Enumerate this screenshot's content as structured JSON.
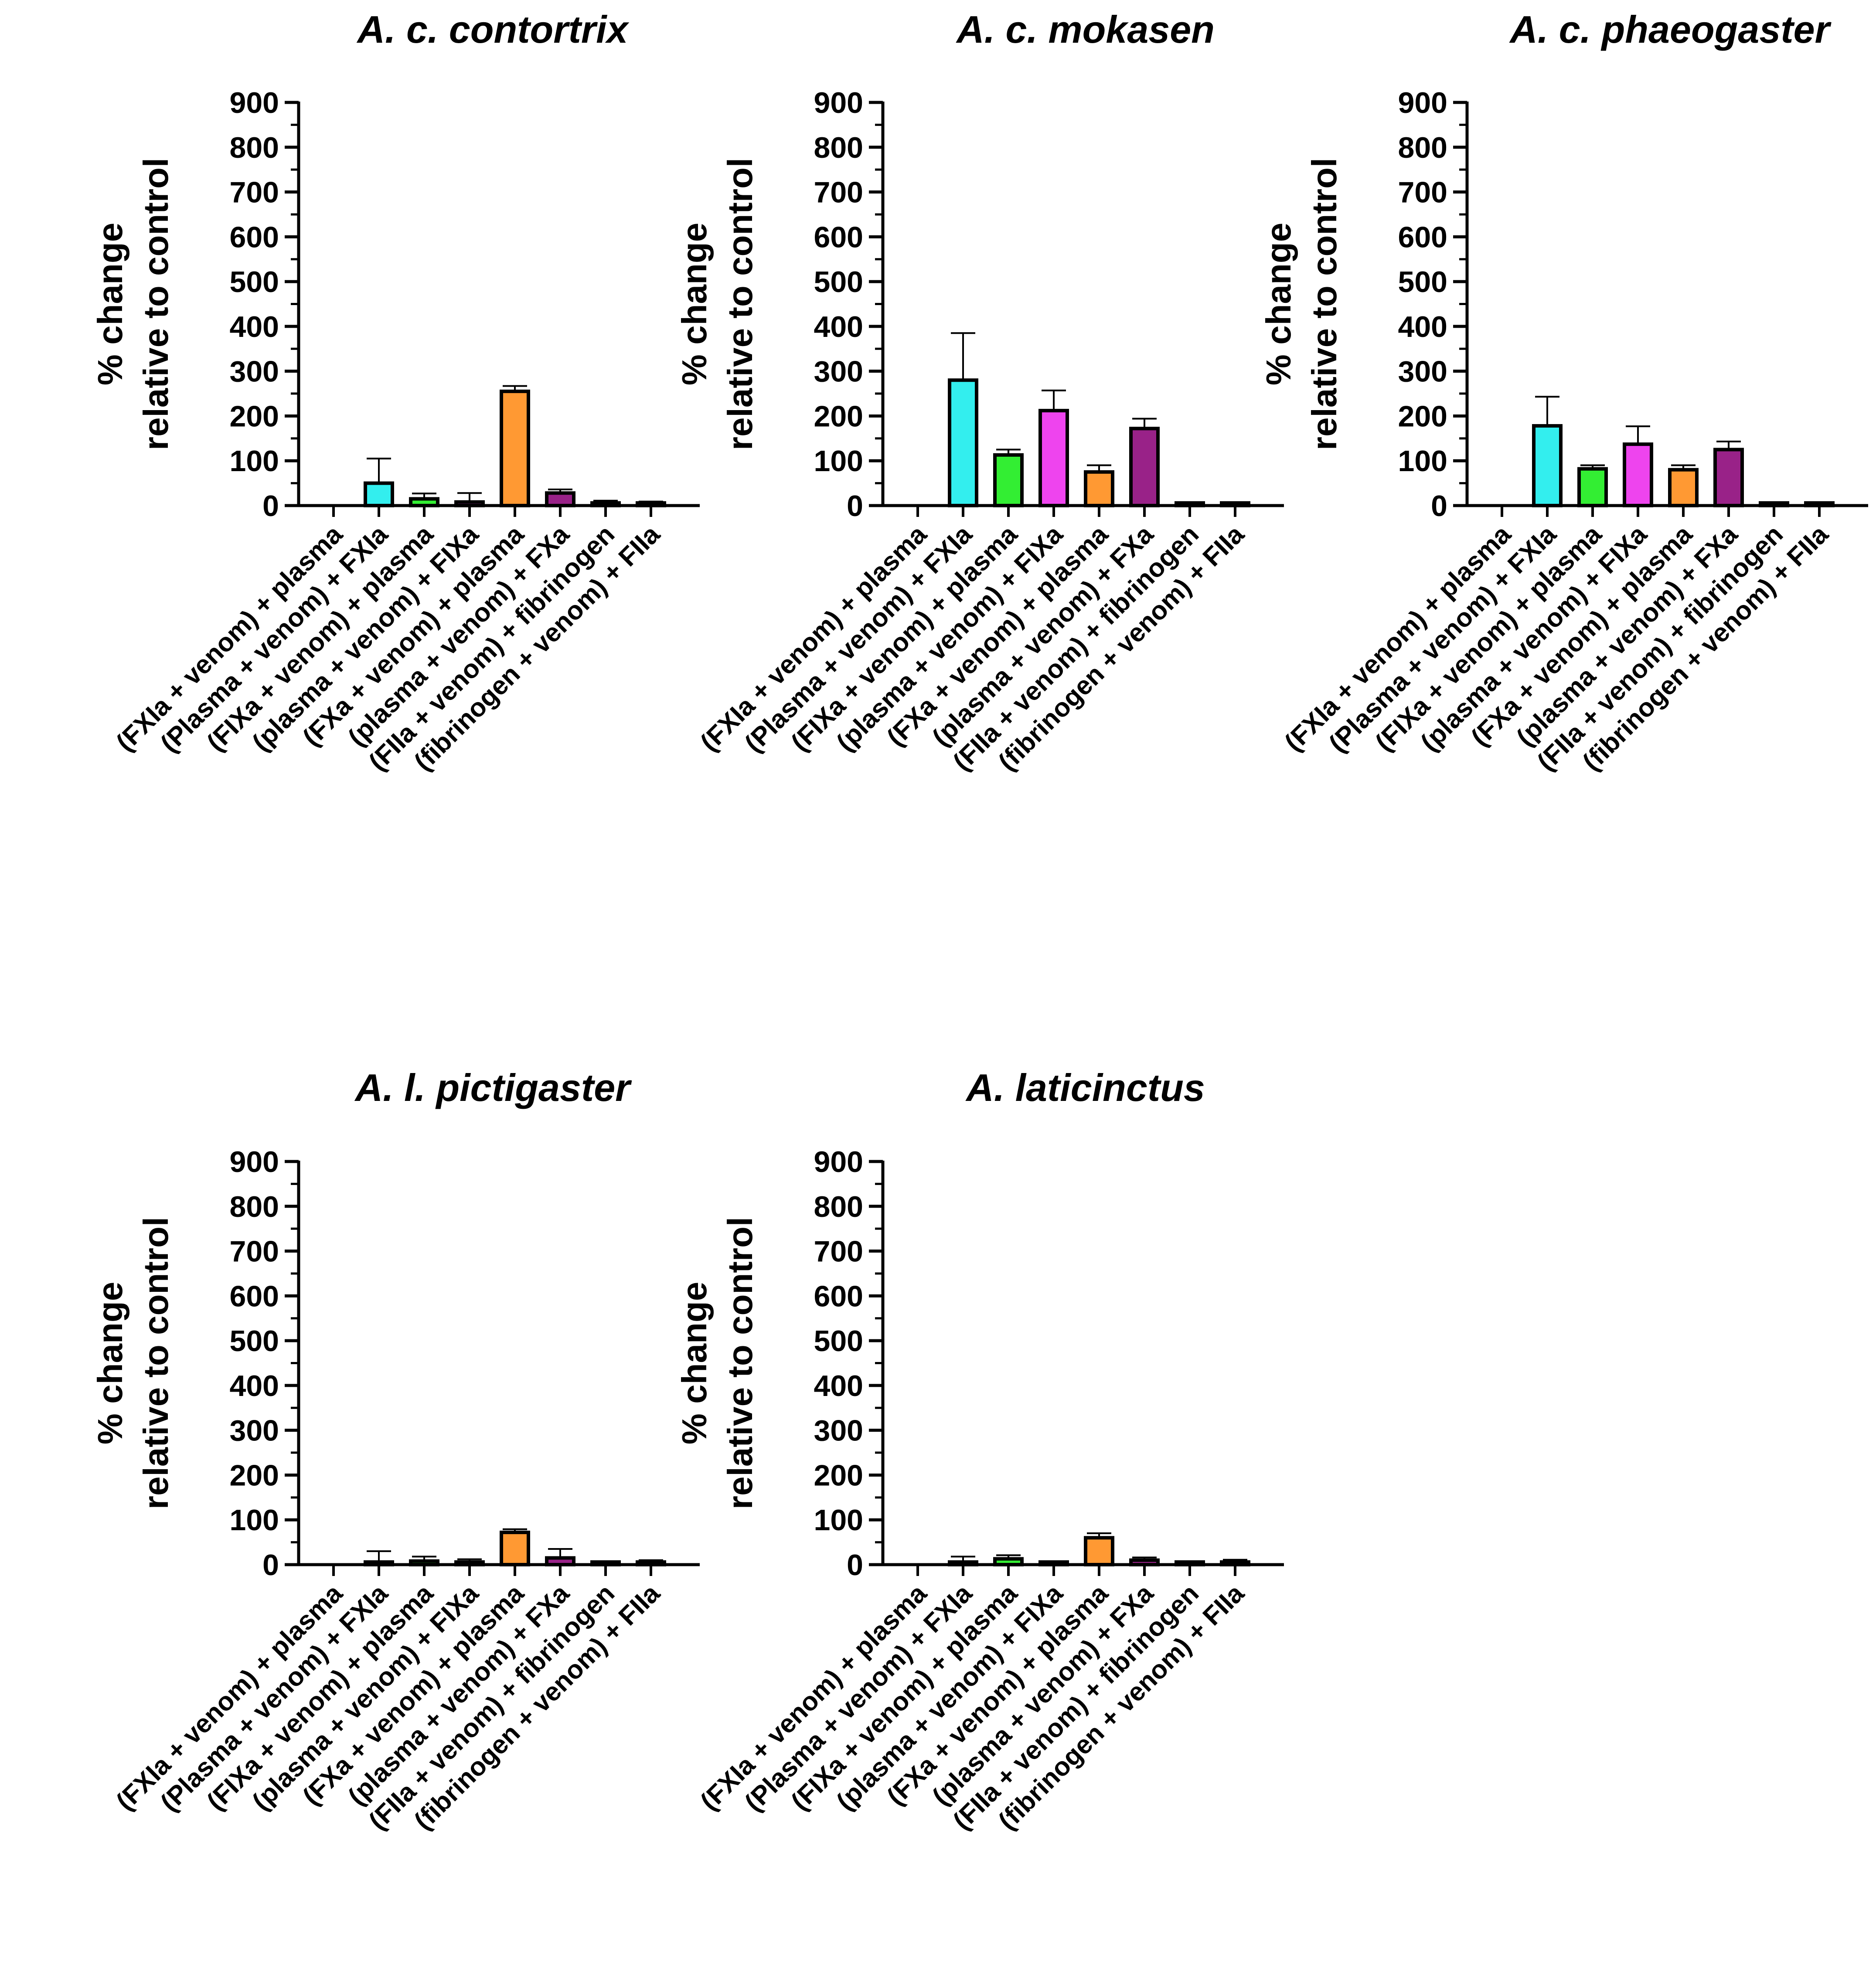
{
  "chart_data": [
    {
      "type": "bar",
      "title": "A. c. contortrix",
      "ylabel": [
        "% change",
        "relative to control"
      ],
      "yticks": [
        0,
        100,
        200,
        300,
        400,
        500,
        600,
        700,
        800,
        900
      ],
      "ylim": [
        0,
        900
      ],
      "categories": [
        "(FXIa + venom) + plasma",
        "(Plasma + venom) + FXIa",
        "(FIXa + venom) + plasma",
        "(plasma + venom) + FIXa",
        "(FXa + venom) + plasma",
        "(plasma + venom) + FXa",
        "(FIIa + venom) + fibrinogen",
        "(fibrinogen + venom) + FIIa"
      ],
      "values": [
        0,
        50,
        15,
        8,
        255,
        28,
        5,
        3
      ],
      "errors": [
        0,
        55,
        12,
        20,
        12,
        8,
        6,
        6
      ],
      "colors": [
        "#ffffff",
        "#33eeee",
        "#33ee33",
        "#ee44ee",
        "#ff9933",
        "#992288",
        "#ffffff",
        "#ffffff"
      ]
    },
    {
      "type": "bar",
      "title": "A. c. mokasen",
      "ylabel": [
        "% change",
        "relative to control"
      ],
      "yticks": [
        0,
        100,
        200,
        300,
        400,
        500,
        600,
        700,
        800,
        900
      ],
      "ylim": [
        0,
        900
      ],
      "categories": [
        "(FXIa + venom) + plasma",
        "(Plasma + venom) + FXIa",
        "(FIXa + venom) + plasma",
        "(plasma + venom) + FIXa",
        "(FXa + venom) + plasma",
        "(plasma + venom) + FXa",
        "(FIIa + venom) + fibrinogen",
        "(fibrinogen + venom) + FIIa"
      ],
      "values": [
        0,
        280,
        113,
        212,
        75,
        172,
        3,
        1
      ],
      "errors": [
        0,
        105,
        12,
        45,
        15,
        22,
        3,
        2
      ],
      "colors": [
        "#ffffff",
        "#33eeee",
        "#33ee33",
        "#ee44ee",
        "#ff9933",
        "#992288",
        "#ffffff",
        "#ffffff"
      ]
    },
    {
      "type": "bar",
      "title": "A. c. phaeogaster",
      "ylabel": [
        "% change",
        "relative to control"
      ],
      "yticks": [
        0,
        100,
        200,
        300,
        400,
        500,
        600,
        700,
        800,
        900
      ],
      "ylim": [
        0,
        900
      ],
      "categories": [
        "(FXIa + venom) + plasma",
        "(Plasma + venom) + FXIa",
        "(FIXa + venom) + plasma",
        "(plasma + venom) + FIXa",
        "(FXa + venom) + plasma",
        "(plasma + venom) + FXa",
        "(FIIa + venom) + fibrinogen",
        "(fibrinogen + venom) + FIIa"
      ],
      "values": [
        0,
        178,
        82,
        137,
        80,
        125,
        3,
        1
      ],
      "errors": [
        0,
        65,
        8,
        40,
        10,
        18,
        3,
        2
      ],
      "colors": [
        "#ffffff",
        "#33eeee",
        "#33ee33",
        "#ee44ee",
        "#ff9933",
        "#992288",
        "#ffffff",
        "#ffffff"
      ]
    },
    {
      "type": "bar",
      "title": "A. l. pictigaster",
      "ylabel": [
        "% change",
        "relative to control"
      ],
      "yticks": [
        0,
        100,
        200,
        300,
        400,
        500,
        600,
        700,
        800,
        900
      ],
      "ylim": [
        0,
        900
      ],
      "categories": [
        "(FXIa + venom) + plasma",
        "(Plasma + venom) + FXIa",
        "(FIXa + venom) + plasma",
        "(plasma + venom) + FIXa",
        "(FXa + venom) + plasma",
        "(plasma + venom) + FXa",
        "(FIIa + venom) + fibrinogen",
        "(fibrinogen + venom) + FIIa"
      ],
      "values": [
        0,
        3,
        8,
        2,
        72,
        15,
        3,
        5
      ],
      "errors": [
        0,
        27,
        10,
        10,
        7,
        20,
        3,
        5
      ],
      "colors": [
        "#ffffff",
        "#33eeee",
        "#33ee33",
        "#ee44ee",
        "#ff9933",
        "#992288",
        "#ffffff",
        "#ffffff"
      ]
    },
    {
      "type": "bar",
      "title": "A. laticinctus",
      "ylabel": [
        "% change",
        "relative to control"
      ],
      "yticks": [
        0,
        100,
        200,
        300,
        400,
        500,
        600,
        700,
        800,
        900
      ],
      "ylim": [
        0,
        900
      ],
      "categories": [
        "(FXIa + venom) + plasma",
        "(Plasma + venom) + FXIa",
        "(FIXa + venom) + plasma",
        "(plasma + venom) + FIXa",
        "(FXa + venom) + plasma",
        "(plasma + venom) + FXa",
        "(FIIa + venom) + fibrinogen",
        "(fibrinogen + venom) + FIIa"
      ],
      "values": [
        0,
        2,
        13,
        2,
        60,
        10,
        3,
        3
      ],
      "errors": [
        0,
        16,
        8,
        2,
        10,
        6,
        3,
        8
      ],
      "colors": [
        "#ffffff",
        "#33eeee",
        "#33ee33",
        "#ee44ee",
        "#ff9933",
        "#992288",
        "#ffffff",
        "#ffffff"
      ]
    }
  ]
}
